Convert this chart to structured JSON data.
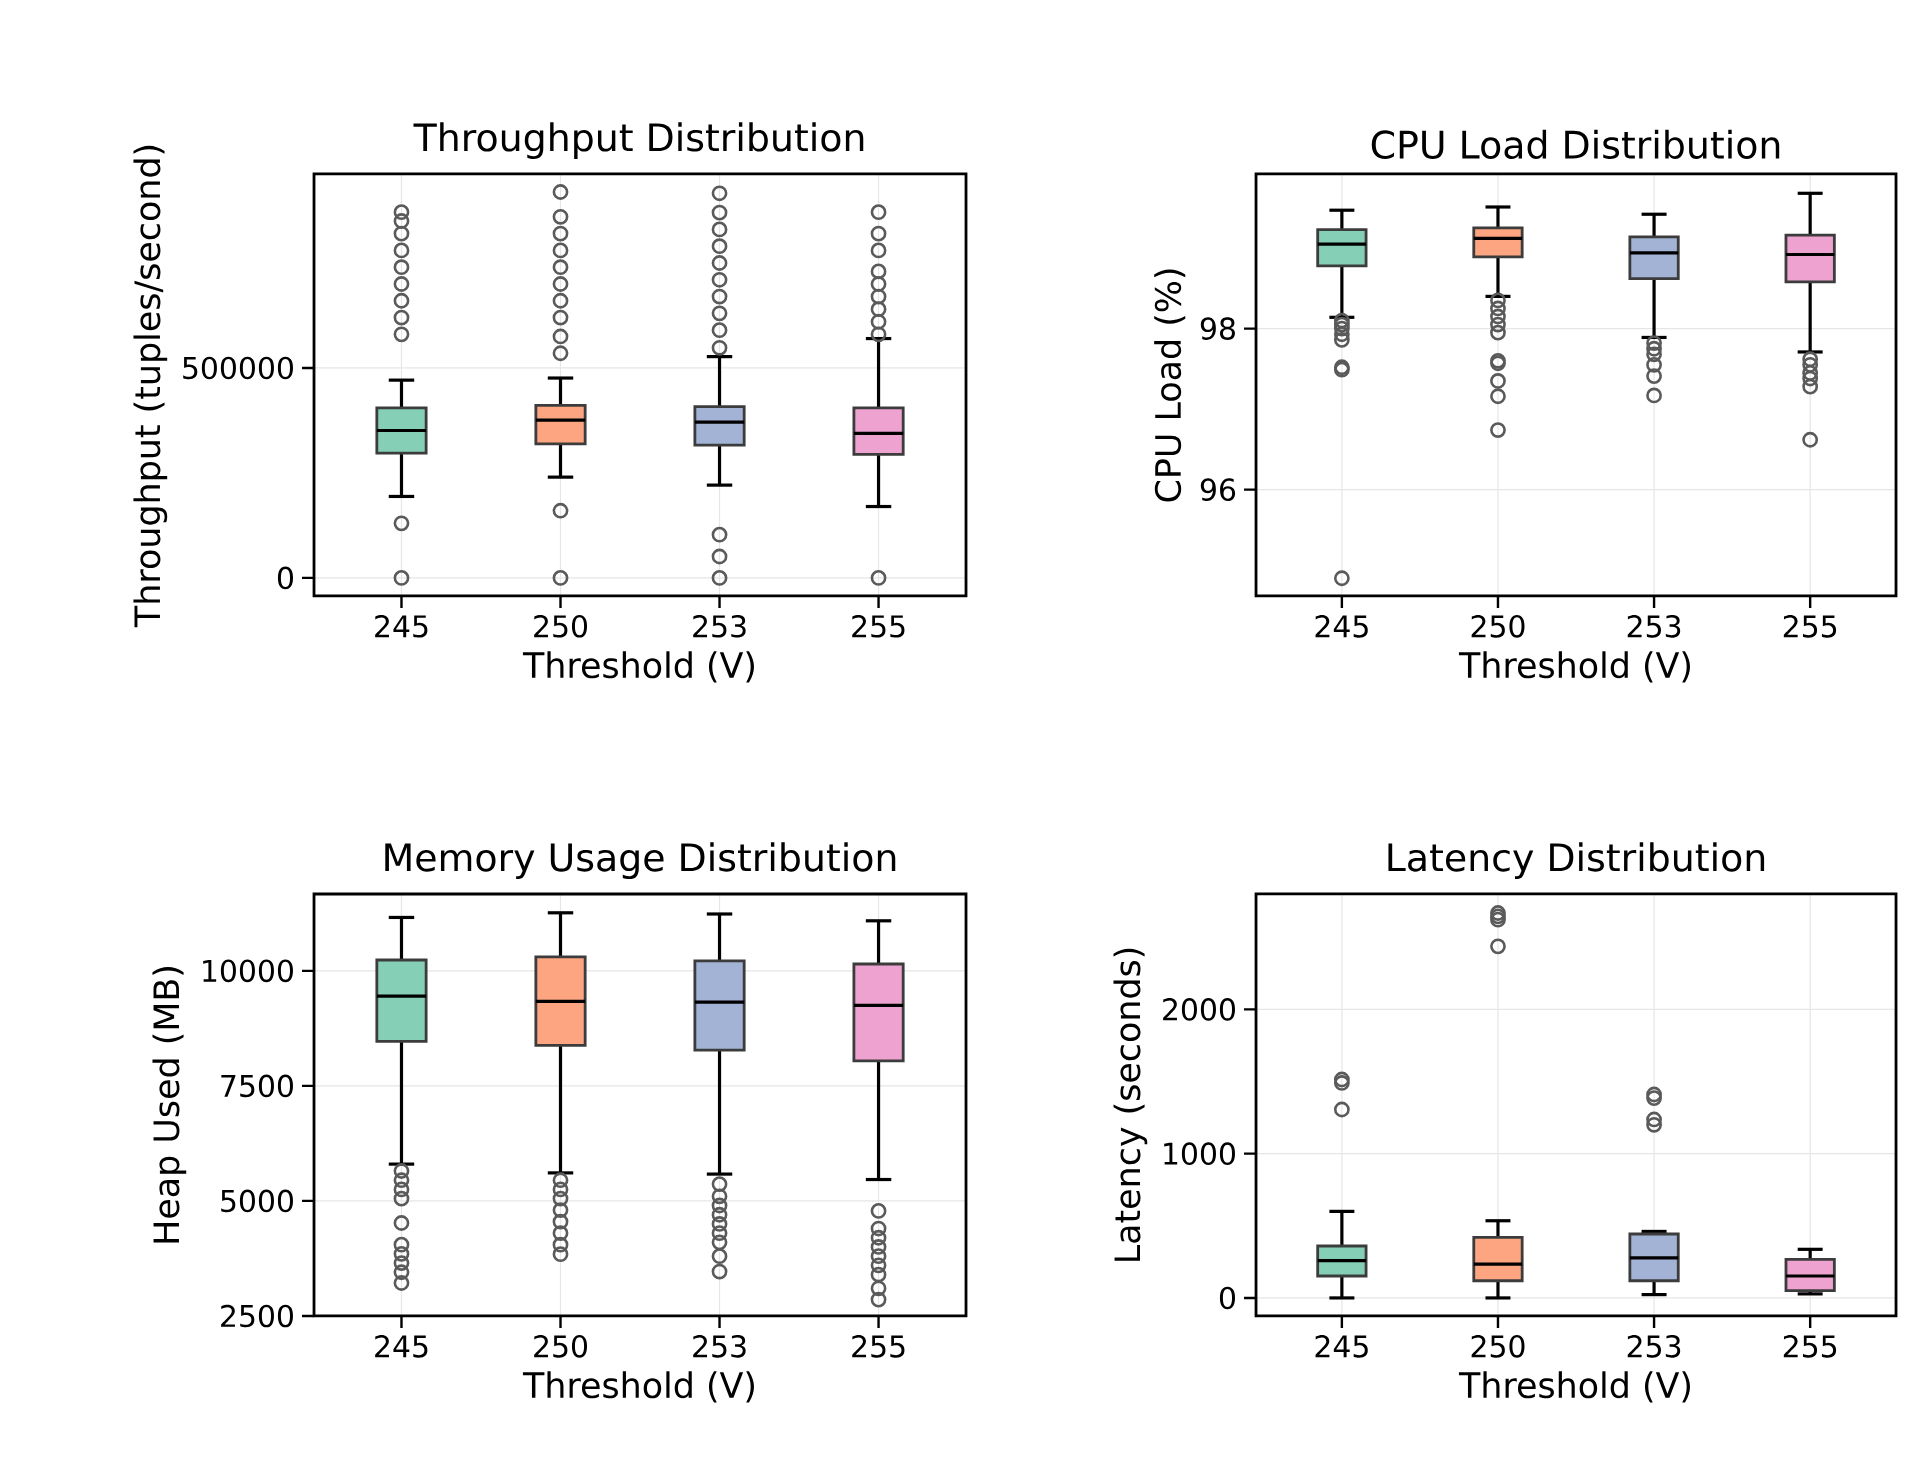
{
  "chart_data": [
    {
      "type": "box",
      "title": "Throughput Distribution",
      "xlabel": "Threshold (V)",
      "ylabel": "Throughput (tuples/second)",
      "categories": [
        "245",
        "250",
        "253",
        "255"
      ],
      "colors": [
        "#85cfb7",
        "#fda481",
        "#a2b3d6",
        "#eda2d0"
      ],
      "ylim": [
        -43000,
        962000
      ],
      "yticks": [
        0,
        500000
      ],
      "grid": true,
      "boxes": [
        {
          "low": 194000,
          "q1": 297000,
          "median": 351000,
          "q3": 405000,
          "high": 471000,
          "outliers": [
            0,
            130000,
            580000,
            620000,
            660000,
            700000,
            740000,
            780000,
            820000,
            850000,
            871000
          ]
        },
        {
          "low": 240000,
          "q1": 319000,
          "median": 376000,
          "q3": 411000,
          "high": 476000,
          "outliers": [
            0,
            160000,
            535000,
            575000,
            620000,
            660000,
            700000,
            740000,
            780000,
            820000,
            860000,
            919000
          ]
        },
        {
          "low": 221000,
          "q1": 316000,
          "median": 371000,
          "q3": 408000,
          "high": 527000,
          "outliers": [
            0,
            51000,
            103000,
            548000,
            590000,
            630000,
            670000,
            710000,
            750000,
            790000,
            830000,
            870000,
            916000
          ]
        },
        {
          "low": 170000,
          "q1": 294000,
          "median": 344000,
          "q3": 405000,
          "high": 570000,
          "outliers": [
            0,
            580000,
            610000,
            640000,
            670000,
            700000,
            730000,
            780000,
            820000,
            871000
          ]
        }
      ]
    },
    {
      "type": "box",
      "title": "CPU Load Distribution",
      "xlabel": "Threshold (V)",
      "ylabel": "CPU Load (%)",
      "categories": [
        "245",
        "250",
        "253",
        "255"
      ],
      "colors": [
        "#85cfb7",
        "#fda481",
        "#a2b3d6",
        "#eda2d0"
      ],
      "ylim": [
        94.68,
        99.92
      ],
      "yticks": [
        96,
        98
      ],
      "grid": true,
      "boxes": [
        {
          "low": 98.14,
          "q1": 98.78,
          "median": 99.05,
          "q3": 99.23,
          "high": 99.47,
          "outliers": [
            98.1,
            98.05,
            98.0,
            97.93,
            97.86,
            97.52,
            97.49,
            94.9
          ]
        },
        {
          "low": 98.4,
          "q1": 98.89,
          "median": 99.12,
          "q3": 99.25,
          "high": 99.51,
          "outliers": [
            98.35,
            98.25,
            98.15,
            98.05,
            97.95,
            97.6,
            97.57,
            97.35,
            97.16,
            96.74
          ]
        },
        {
          "low": 97.89,
          "q1": 98.62,
          "median": 98.94,
          "q3": 99.14,
          "high": 99.42,
          "outliers": [
            97.82,
            97.75,
            97.68,
            97.55,
            97.41,
            97.17
          ]
        },
        {
          "low": 97.71,
          "q1": 98.58,
          "median": 98.92,
          "q3": 99.16,
          "high": 99.68,
          "outliers": [
            97.62,
            97.55,
            97.45,
            97.38,
            97.28,
            96.62
          ]
        }
      ]
    },
    {
      "type": "box",
      "title": "Memory Usage Distribution",
      "xlabel": "Threshold (V)",
      "ylabel": "Heap Used (MB)",
      "categories": [
        "245",
        "250",
        "253",
        "255"
      ],
      "colors": [
        "#85cfb7",
        "#fda481",
        "#a2b3d6",
        "#eda2d0"
      ],
      "ylim": [
        2500,
        11670
      ],
      "yticks": [
        2500,
        5000,
        7500,
        10000
      ],
      "grid": true,
      "boxes": [
        {
          "low": 5800,
          "q1": 8465,
          "median": 9452,
          "q3": 10235,
          "high": 11160,
          "outliers": [
            5650,
            5450,
            5250,
            5050,
            4520,
            4050,
            3850,
            3650,
            3450,
            3217
          ]
        },
        {
          "low": 5609,
          "q1": 8378,
          "median": 9335,
          "q3": 10304,
          "high": 11261,
          "outliers": [
            5450,
            5250,
            5050,
            4800,
            4550,
            4300,
            4050,
            3843
          ]
        },
        {
          "low": 5583,
          "q1": 8278,
          "median": 9322,
          "q3": 10217,
          "high": 11235,
          "outliers": [
            5365,
            5100,
            4900,
            4700,
            4500,
            4300,
            4100,
            3800,
            3465
          ]
        },
        {
          "low": 5465,
          "q1": 8043,
          "median": 9248,
          "q3": 10148,
          "high": 11087,
          "outliers": [
            4783,
            4400,
            4200,
            4000,
            3800,
            3600,
            3400,
            3100,
            2856
          ]
        }
      ]
    },
    {
      "type": "box",
      "title": "Latency Distribution",
      "xlabel": "Threshold (V)",
      "ylabel": "Latency (seconds)",
      "categories": [
        "245",
        "250",
        "253",
        "255"
      ],
      "colors": [
        "#85cfb7",
        "#fda481",
        "#a2b3d6",
        "#eda2d0"
      ],
      "ylim": [
        -125,
        2800
      ],
      "yticks": [
        0,
        1000,
        2000
      ],
      "grid": true,
      "boxes": [
        {
          "low": 0,
          "q1": 152,
          "median": 258,
          "q3": 360,
          "high": 600,
          "outliers": [
            1306,
            1490,
            1514
          ]
        },
        {
          "low": 0,
          "q1": 119,
          "median": 235,
          "q3": 420,
          "high": 535,
          "outliers": [
            2437,
            2622,
            2645,
            2668
          ]
        },
        {
          "low": 23,
          "q1": 119,
          "median": 277,
          "q3": 443,
          "high": 461,
          "outliers": [
            1200,
            1237,
            1385,
            1410
          ]
        },
        {
          "low": 28,
          "q1": 50,
          "median": 152,
          "q3": 267,
          "high": 337
        }
      ]
    }
  ]
}
